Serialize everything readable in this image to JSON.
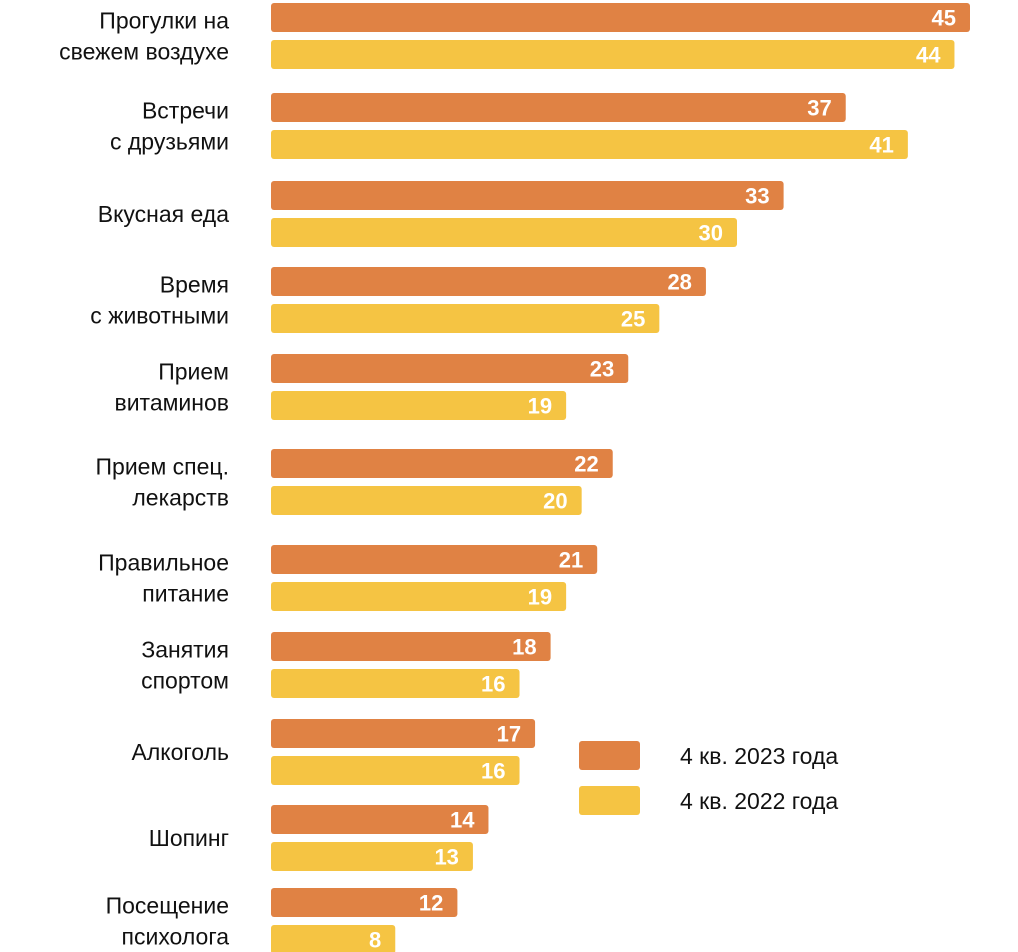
{
  "chart_data": {
    "type": "bar",
    "orientation": "horizontal",
    "title": "",
    "xlabel": "",
    "ylabel": "",
    "categories": [
      [
        "Прогулки на",
        "свежем воздухе"
      ],
      [
        "Встречи",
        "с друзьями"
      ],
      [
        "Вкусная еда"
      ],
      [
        "Время",
        "с животными"
      ],
      [
        "Прием",
        "витаминов"
      ],
      [
        "Прием спец.",
        "лекарств"
      ],
      [
        "Правильное",
        "питание"
      ],
      [
        "Занятия",
        "спортом"
      ],
      [
        "Алкоголь"
      ],
      [
        "Шопинг"
      ],
      [
        "Посещение",
        "психолога"
      ]
    ],
    "series": [
      {
        "name": "4 кв. 2023 года",
        "color": "#E08244",
        "values": [
          45,
          37,
          33,
          28,
          23,
          22,
          21,
          18,
          17,
          14,
          12
        ]
      },
      {
        "name": "4 кв. 2022 года",
        "color": "#F5C443",
        "values": [
          44,
          41,
          30,
          25,
          19,
          20,
          19,
          16,
          16,
          13,
          8
        ]
      }
    ],
    "xlim": [
      0,
      45
    ],
    "grid": false,
    "legend_position": "bottom-right"
  }
}
